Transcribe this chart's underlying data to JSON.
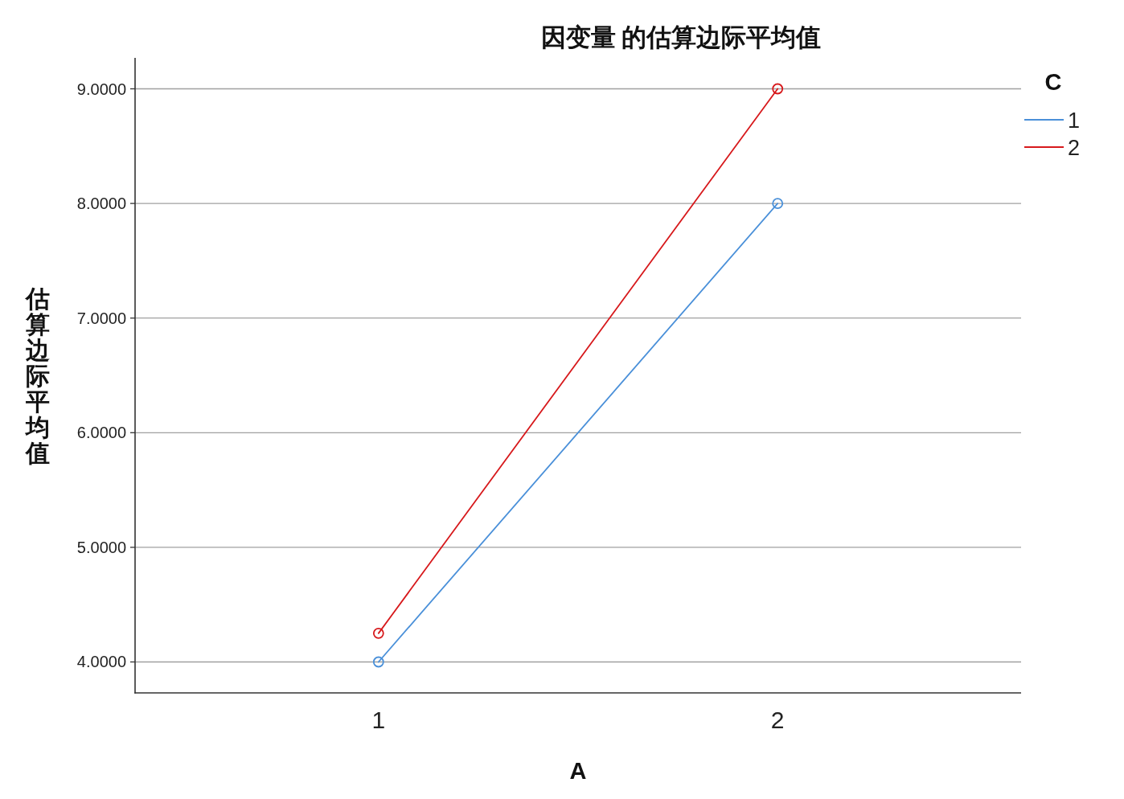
{
  "chart_data": {
    "type": "line",
    "title": "因变量 的估算边际平均值",
    "xlabel": "A",
    "ylabel": "估算边际平均值",
    "legend_title": "C",
    "categories": [
      "1",
      "2"
    ],
    "series": [
      {
        "name": "1",
        "color": "#4a90d9",
        "values": [
          4.0,
          8.0
        ]
      },
      {
        "name": "2",
        "color": "#d7191c",
        "values": [
          4.25,
          9.0
        ]
      }
    ],
    "ylim": [
      3.73,
      9.27
    ],
    "yticks": [
      {
        "value": 4,
        "label": "4.0000"
      },
      {
        "value": 5,
        "label": "5.0000"
      },
      {
        "value": 6,
        "label": "6.0000"
      },
      {
        "value": 7,
        "label": "7.0000"
      },
      {
        "value": 8,
        "label": "8.0000"
      },
      {
        "value": 9,
        "label": "9.0000"
      }
    ],
    "grid": "y",
    "legend": "top right",
    "marker": "circle",
    "line_style": "solid"
  }
}
